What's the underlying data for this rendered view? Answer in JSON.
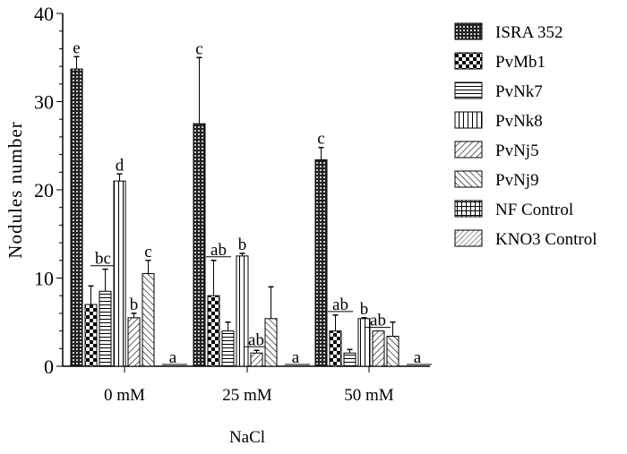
{
  "chart_data": {
    "type": "bar",
    "title": "",
    "xlabel": "NaCl",
    "ylabel": "Nodules number",
    "ylim": [
      0,
      40
    ],
    "yticks": [
      0,
      10,
      20,
      30,
      40
    ],
    "categories": [
      "0 mM",
      "25 mM",
      "50 mM"
    ],
    "legend_position": "right",
    "series": [
      {
        "name": "ISRA 352",
        "values": [
          33.7,
          27.5,
          23.4
        ],
        "errors": [
          1.4,
          7.5,
          1.4
        ],
        "letters": [
          "e",
          "c",
          "c"
        ]
      },
      {
        "name": "PvMb1",
        "values": [
          7.0,
          8.0,
          4.0
        ],
        "errors": [
          2.1,
          4.0,
          1.8
        ],
        "letters": [
          "bc",
          "ab",
          "ab"
        ]
      },
      {
        "name": "PvNk7",
        "values": [
          8.5,
          4.0,
          1.5
        ],
        "errors": [
          2.5,
          1.0,
          0.4
        ],
        "letters": [
          "",
          "",
          ""
        ]
      },
      {
        "name": "PvNk8",
        "values": [
          21.0,
          12.5,
          5.4
        ],
        "errors": [
          0.8,
          0.3,
          0.1
        ],
        "letters": [
          "d",
          "b",
          "b"
        ]
      },
      {
        "name": "PvNj5",
        "values": [
          5.5,
          1.5,
          4.0
        ],
        "errors": [
          0.5,
          0.3,
          0
        ],
        "letters": [
          "b",
          "ab",
          "ab"
        ]
      },
      {
        "name": "PvNj9",
        "values": [
          10.5,
          5.4,
          3.4
        ],
        "errors": [
          1.5,
          3.6,
          1.6
        ],
        "letters": [
          "c",
          "",
          ""
        ]
      },
      {
        "name": "NF Control",
        "values": [
          0,
          0,
          0
        ],
        "errors": [
          0,
          0,
          0
        ],
        "letters": [
          "",
          "",
          ""
        ]
      },
      {
        "name": "KNO3 Control",
        "values": [
          0,
          0,
          0
        ],
        "errors": [
          0,
          0,
          0
        ],
        "letters": [
          "a",
          "a",
          "a"
        ]
      }
    ]
  }
}
